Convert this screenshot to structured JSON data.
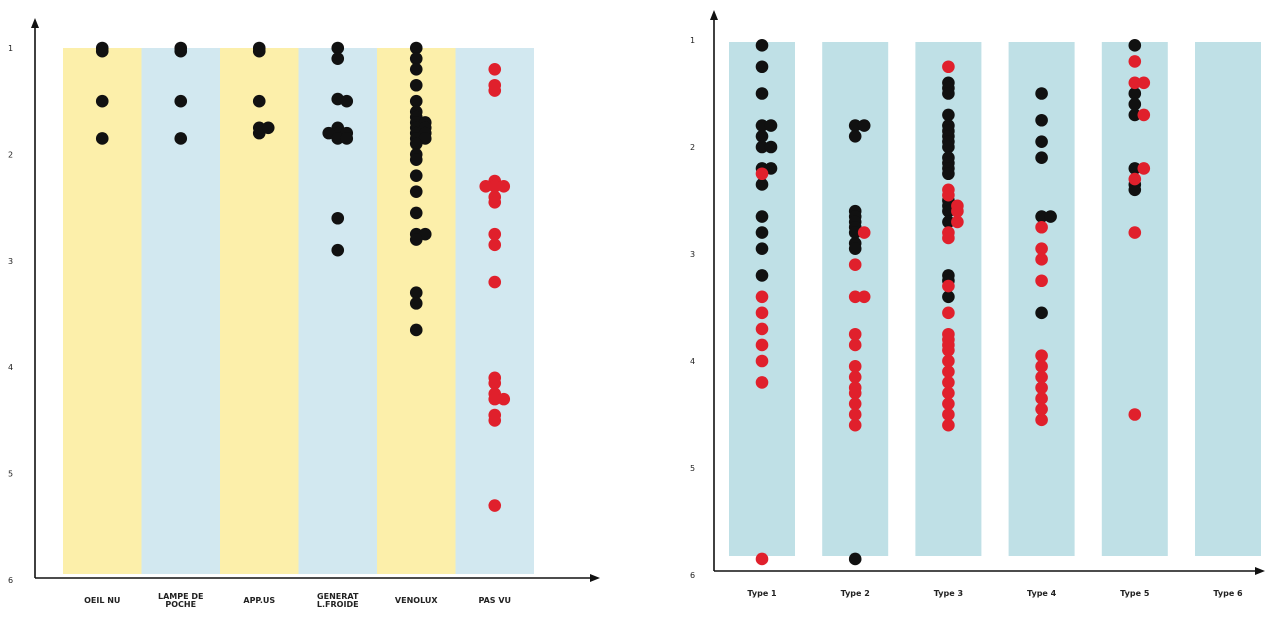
{
  "colors": {
    "yellow": "#fcefaa",
    "blue": "#d2e8f0",
    "teal": "#bfe0e6",
    "black": "#111111",
    "red": "#e0202c"
  },
  "chart_data": [
    {
      "type": "scatter",
      "title": "",
      "xlabel": "",
      "ylabel": "",
      "ylim": [
        1,
        6
      ],
      "y_inverted": true,
      "grid": false,
      "y_ticks": [
        "1",
        "2",
        "3",
        "4",
        "5",
        "6"
      ],
      "categories": [
        {
          "label": "OEIL NU",
          "band_color": "yellow"
        },
        {
          "label": "LAMPE DE POCHE",
          "band_color": "blue"
        },
        {
          "label": "APP.US",
          "band_color": "yellow"
        },
        {
          "label": "GENERAT L.FROIDE",
          "band_color": "blue"
        },
        {
          "label": "VENOLUX",
          "band_color": "yellow"
        },
        {
          "label": "PAS VU",
          "band_color": "blue"
        }
      ],
      "series": [
        {
          "color": "black",
          "points": [
            [
              0,
              1.0
            ],
            [
              0,
              1.03
            ],
            [
              0,
              1.5
            ],
            [
              0,
              1.85
            ],
            [
              1,
              1.03
            ],
            [
              1,
              1.0
            ],
            [
              1,
              1.5
            ],
            [
              1,
              1.85
            ],
            [
              2,
              1.03
            ],
            [
              2,
              1.0
            ],
            [
              2,
              1.5
            ],
            [
              2,
              1.8
            ],
            [
              2,
              1.75
            ],
            [
              2,
              1.75
            ],
            [
              3,
              1.0
            ],
            [
              3,
              1.1
            ],
            [
              3,
              1.48
            ],
            [
              3,
              1.5
            ],
            [
              3,
              1.75
            ],
            [
              3,
              1.8
            ],
            [
              3,
              1.8
            ],
            [
              3,
              1.8
            ],
            [
              3,
              1.85
            ],
            [
              3,
              1.85
            ],
            [
              3,
              2.6
            ],
            [
              3,
              2.9
            ],
            [
              4,
              1.0
            ],
            [
              4,
              1.1
            ],
            [
              4,
              1.2
            ],
            [
              4,
              1.35
            ],
            [
              4,
              1.5
            ],
            [
              4,
              1.6
            ],
            [
              4,
              1.65
            ],
            [
              4,
              1.7
            ],
            [
              4,
              1.7
            ],
            [
              4,
              1.75
            ],
            [
              4,
              1.75
            ],
            [
              4,
              1.8
            ],
            [
              4,
              1.8
            ],
            [
              4,
              1.85
            ],
            [
              4,
              1.85
            ],
            [
              4,
              1.9
            ],
            [
              4,
              2.0
            ],
            [
              4,
              2.05
            ],
            [
              4,
              2.2
            ],
            [
              4,
              2.35
            ],
            [
              4,
              2.55
            ],
            [
              4,
              2.75
            ],
            [
              4,
              2.75
            ],
            [
              4,
              2.8
            ],
            [
              4,
              3.3
            ],
            [
              4,
              3.4
            ],
            [
              4,
              3.65
            ]
          ]
        },
        {
          "color": "red",
          "points": [
            [
              5,
              1.2
            ],
            [
              5,
              1.35
            ],
            [
              5,
              1.4
            ],
            [
              5,
              2.25
            ],
            [
              5,
              2.3
            ],
            [
              5,
              2.3
            ],
            [
              5,
              2.3
            ],
            [
              5,
              2.4
            ],
            [
              5,
              2.45
            ],
            [
              5,
              2.75
            ],
            [
              5,
              2.85
            ],
            [
              5,
              3.2
            ],
            [
              5,
              4.1
            ],
            [
              5,
              4.15
            ],
            [
              5,
              4.25
            ],
            [
              5,
              4.3
            ],
            [
              5,
              4.3
            ],
            [
              5,
              4.45
            ],
            [
              5,
              4.5
            ],
            [
              5,
              5.3
            ]
          ]
        }
      ]
    },
    {
      "type": "scatter",
      "title": "",
      "xlabel": "",
      "ylabel": "",
      "ylim": [
        1,
        6
      ],
      "y_inverted": true,
      "grid": false,
      "y_ticks": [
        "1",
        "2",
        "3",
        "4",
        "5",
        "6"
      ],
      "categories": [
        {
          "label": "Type 1",
          "band_color": "teal"
        },
        {
          "label": "Type 2",
          "band_color": "teal"
        },
        {
          "label": "Type 3",
          "band_color": "teal"
        },
        {
          "label": "Type 4",
          "band_color": "teal"
        },
        {
          "label": "Type 5",
          "band_color": "teal"
        },
        {
          "label": "Type 6",
          "band_color": "teal"
        }
      ],
      "series": [
        {
          "color": "black",
          "points": [
            [
              0,
              1.05
            ],
            [
              0,
              1.25
            ],
            [
              0,
              1.5
            ],
            [
              0,
              1.8
            ],
            [
              0,
              1.8
            ],
            [
              0,
              1.9
            ],
            [
              0,
              2.0
            ],
            [
              0,
              2.0
            ],
            [
              0,
              2.2
            ],
            [
              0,
              2.2
            ],
            [
              0,
              2.35
            ],
            [
              0,
              2.65
            ],
            [
              0,
              2.8
            ],
            [
              0,
              2.95
            ],
            [
              0,
              3.2
            ],
            [
              1,
              1.8
            ],
            [
              1,
              1.8
            ],
            [
              1,
              1.9
            ],
            [
              1,
              2.6
            ],
            [
              1,
              2.65
            ],
            [
              1,
              2.7
            ],
            [
              1,
              2.75
            ],
            [
              1,
              2.8
            ],
            [
              1,
              2.9
            ],
            [
              1,
              2.95
            ],
            [
              1,
              5.85
            ],
            [
              2,
              1.4
            ],
            [
              2,
              1.45
            ],
            [
              2,
              1.5
            ],
            [
              2,
              1.7
            ],
            [
              2,
              1.8
            ],
            [
              2,
              1.85
            ],
            [
              2,
              1.9
            ],
            [
              2,
              1.95
            ],
            [
              2,
              2.0
            ],
            [
              2,
              2.1
            ],
            [
              2,
              2.15
            ],
            [
              2,
              2.2
            ],
            [
              2,
              2.25
            ],
            [
              2,
              2.5
            ],
            [
              2,
              2.55
            ],
            [
              2,
              2.6
            ],
            [
              2,
              2.7
            ],
            [
              2,
              3.2
            ],
            [
              2,
              3.25
            ],
            [
              2,
              3.4
            ],
            [
              3,
              1.5
            ],
            [
              3,
              1.75
            ],
            [
              3,
              1.95
            ],
            [
              3,
              2.1
            ],
            [
              3,
              2.65
            ],
            [
              3,
              2.65
            ],
            [
              3,
              3.55
            ],
            [
              4,
              1.05
            ],
            [
              4,
              1.5
            ],
            [
              4,
              1.6
            ],
            [
              4,
              1.7
            ],
            [
              4,
              2.2
            ],
            [
              4,
              2.35
            ],
            [
              4,
              2.4
            ]
          ]
        },
        {
          "color": "red",
          "points": [
            [
              0,
              2.25
            ],
            [
              0,
              3.4
            ],
            [
              0,
              3.55
            ],
            [
              0,
              3.7
            ],
            [
              0,
              3.85
            ],
            [
              0,
              4.0
            ],
            [
              0,
              4.2
            ],
            [
              0,
              5.85
            ],
            [
              1,
              2.8
            ],
            [
              1,
              3.1
            ],
            [
              1,
              3.4
            ],
            [
              1,
              3.4
            ],
            [
              1,
              3.75
            ],
            [
              1,
              3.85
            ],
            [
              1,
              4.05
            ],
            [
              1,
              4.15
            ],
            [
              1,
              4.25
            ],
            [
              1,
              4.3
            ],
            [
              1,
              4.4
            ],
            [
              1,
              4.5
            ],
            [
              1,
              4.6
            ],
            [
              2,
              1.25
            ],
            [
              2,
              2.4
            ],
            [
              2,
              2.45
            ],
            [
              2,
              2.55
            ],
            [
              2,
              2.6
            ],
            [
              2,
              2.7
            ],
            [
              2,
              2.8
            ],
            [
              2,
              2.85
            ],
            [
              2,
              3.3
            ],
            [
              2,
              3.55
            ],
            [
              2,
              3.75
            ],
            [
              2,
              3.8
            ],
            [
              2,
              3.85
            ],
            [
              2,
              3.9
            ],
            [
              2,
              4.0
            ],
            [
              2,
              4.1
            ],
            [
              2,
              4.2
            ],
            [
              2,
              4.3
            ],
            [
              2,
              4.4
            ],
            [
              2,
              4.5
            ],
            [
              2,
              4.6
            ],
            [
              3,
              2.75
            ],
            [
              3,
              2.95
            ],
            [
              3,
              3.05
            ],
            [
              3,
              3.25
            ],
            [
              3,
              3.95
            ],
            [
              3,
              4.05
            ],
            [
              3,
              4.15
            ],
            [
              3,
              4.25
            ],
            [
              3,
              4.35
            ],
            [
              3,
              4.45
            ],
            [
              3,
              4.55
            ],
            [
              4,
              1.2
            ],
            [
              4,
              1.4
            ],
            [
              4,
              1.4
            ],
            [
              4,
              1.7
            ],
            [
              4,
              2.2
            ],
            [
              4,
              2.3
            ],
            [
              4,
              2.8
            ],
            [
              4,
              4.5
            ]
          ]
        }
      ]
    }
  ]
}
